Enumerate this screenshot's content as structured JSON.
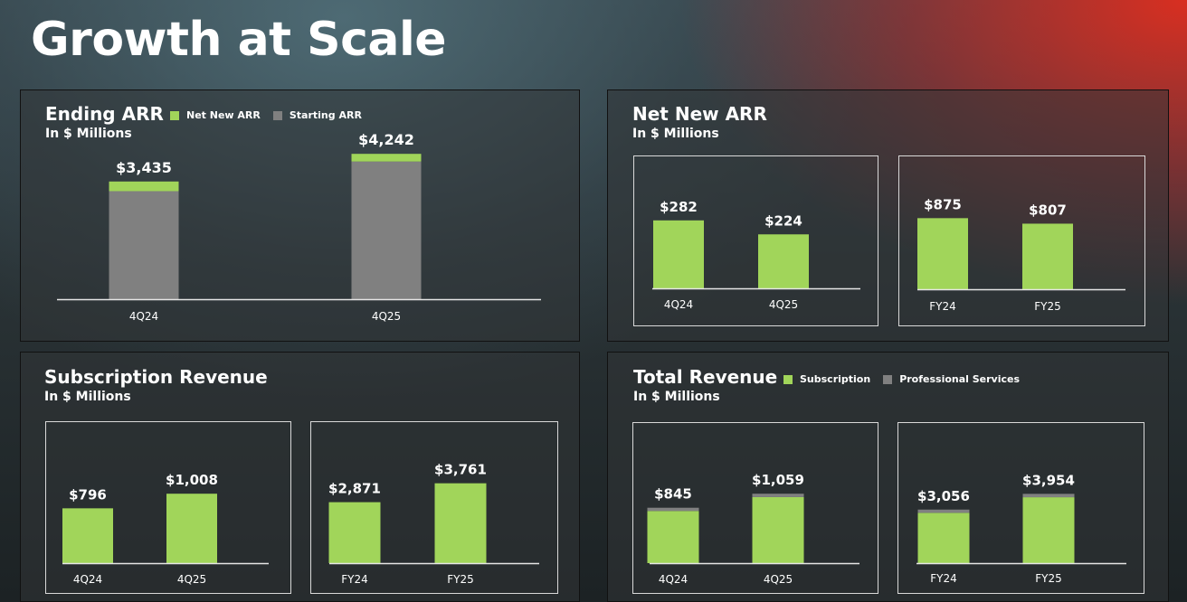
{
  "page": {
    "title": "Growth at Scale"
  },
  "colors": {
    "green": "#a1d55a",
    "gray": "#808080",
    "axis": "#e6e6e6"
  },
  "panels": {
    "ending_arr": {
      "title": "Ending ARR",
      "subtitle": "In $ Millions",
      "legend": [
        "Net New ARR",
        "Starting ARR"
      ]
    },
    "net_new_arr": {
      "title": "Net New ARR",
      "subtitle": "In $ Millions"
    },
    "subscription_revenue": {
      "title": "Subscription Revenue",
      "subtitle": "In $ Millions"
    },
    "total_revenue": {
      "title": "Total Revenue",
      "subtitle": "In $ Millions",
      "legend": [
        "Subscription",
        "Professional Services"
      ]
    }
  },
  "chart_data": [
    {
      "id": "ending-arr",
      "type": "bar",
      "stacked": true,
      "categories": [
        "4Q24",
        "4Q25"
      ],
      "series": [
        {
          "name": "Starting ARR",
          "values": [
            3153,
            4018
          ]
        },
        {
          "name": "Net New ARR",
          "values": [
            282,
            224
          ]
        }
      ],
      "totals": [
        "$3,435",
        "$4,242"
      ],
      "ylim": [
        0,
        4300
      ]
    },
    {
      "id": "net-new-arr-quarterly",
      "type": "bar",
      "categories": [
        "4Q24",
        "4Q25"
      ],
      "values": [
        282,
        224
      ],
      "labels": [
        "$282",
        "$224"
      ],
      "ylim": [
        0,
        330
      ]
    },
    {
      "id": "net-new-arr-annual",
      "type": "bar",
      "categories": [
        "FY24",
        "FY25"
      ],
      "values": [
        875,
        807
      ],
      "labels": [
        "$875",
        "$807"
      ],
      "ylim": [
        0,
        990
      ]
    },
    {
      "id": "subscription-revenue-quarterly",
      "type": "bar",
      "categories": [
        "4Q24",
        "4Q25"
      ],
      "values": [
        796,
        1008
      ],
      "labels": [
        "$796",
        "$1,008"
      ],
      "ylim": [
        0,
        1260
      ]
    },
    {
      "id": "subscription-revenue-annual",
      "type": "bar",
      "categories": [
        "FY24",
        "FY25"
      ],
      "values": [
        2871,
        3761
      ],
      "labels": [
        "$2,871",
        "$3,761"
      ],
      "ylim": [
        0,
        4300
      ]
    },
    {
      "id": "total-revenue-quarterly",
      "type": "bar",
      "stacked": true,
      "categories": [
        "4Q24",
        "4Q25"
      ],
      "series": [
        {
          "name": "Subscription",
          "values": [
            796,
            1008
          ]
        },
        {
          "name": "Professional Services",
          "values": [
            49,
            51
          ]
        }
      ],
      "totals": [
        "$845",
        "$1,059"
      ],
      "ylim": [
        0,
        1310
      ]
    },
    {
      "id": "total-revenue-annual",
      "type": "bar",
      "stacked": true,
      "categories": [
        "FY24",
        "FY25"
      ],
      "series": [
        {
          "name": "Subscription",
          "values": [
            2871,
            3761
          ]
        },
        {
          "name": "Professional Services",
          "values": [
            185,
            193
          ]
        }
      ],
      "totals": [
        "$3,056",
        "$3,954"
      ],
      "ylim": [
        0,
        4900
      ]
    }
  ]
}
